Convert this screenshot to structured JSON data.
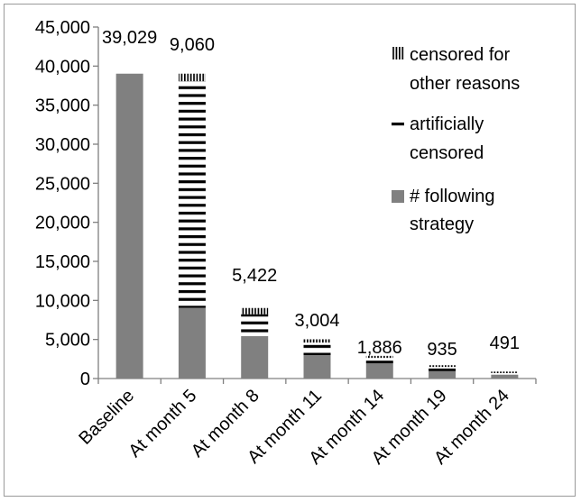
{
  "chart_data": {
    "type": "bar",
    "stacked": true,
    "categories": [
      "Baseline",
      "At month 5",
      "At month 8",
      "At month 11",
      "At month 14",
      "At month 19",
      "At month 24"
    ],
    "series": [
      {
        "name": "# following strategy",
        "pattern": "solid",
        "color": "#808080",
        "values": [
          39029,
          9060,
          5422,
          3004,
          1886,
          935,
          491
        ]
      },
      {
        "name": "artificially censored",
        "pattern": "horizontal-stripes",
        "color": "#000000",
        "values": [
          0,
          29000,
          2800,
          1600,
          750,
          550,
          200
        ]
      },
      {
        "name": "censored for other reasons",
        "pattern": "vertical-stripes",
        "color": "#000000",
        "values": [
          0,
          969,
          807,
          418,
          264,
          221,
          200
        ]
      }
    ],
    "data_labels": [
      "39,029",
      "9,060",
      "5,422",
      "3,004",
      "1,886",
      "935",
      "491"
    ],
    "ylim": [
      0,
      45000
    ],
    "ytick_step": 5000,
    "ytick_labels": [
      "0",
      "5,000",
      "10,000",
      "15,000",
      "20,000",
      "25,000",
      "30,000",
      "35,000",
      "40,000",
      "45,000"
    ],
    "legend_position": "upper-right",
    "legend_lines": {
      "censored_other": [
        "censored for",
        "other reasons"
      ],
      "artificial": [
        "artificially",
        "censored"
      ],
      "following": [
        "# following",
        "strategy"
      ]
    },
    "grid": false,
    "title": "",
    "xlabel": "",
    "ylabel": ""
  }
}
